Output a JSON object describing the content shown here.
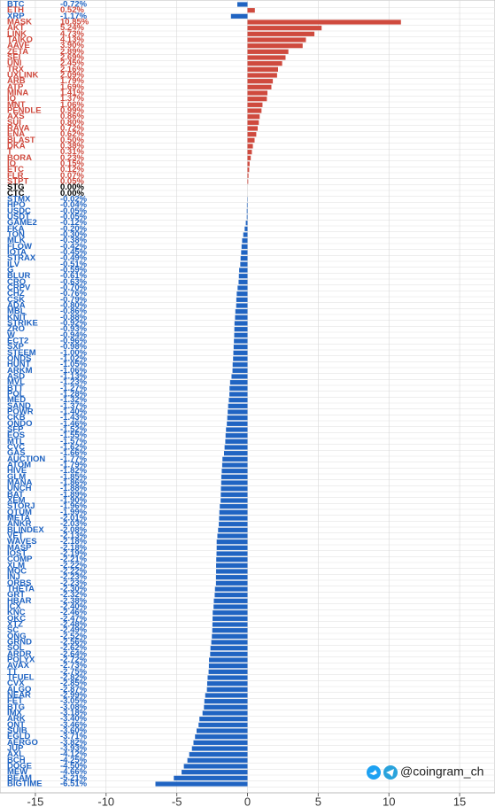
{
  "chart_data": {
    "type": "bar",
    "orientation": "horizontal",
    "categories": [
      "BTC",
      "ETH",
      "XRP",
      "MASK",
      "AKT",
      "LINK",
      "TAIKO",
      "AAVE",
      "ZETA",
      "SEI",
      "UNI",
      "TRX",
      "UXLINK",
      "ARB",
      "ATP",
      "MINA",
      "IQ",
      "MNT",
      "PENDLE",
      "AXS",
      "SUI",
      "RAVA",
      "ENA",
      "BLAST",
      "DKA",
      "T",
      "BORA",
      "IO",
      "ETC",
      "FLR",
      "STPT",
      "STG",
      "CTC",
      "STMX",
      "HPO",
      "USDC",
      "USDT",
      "GAME2",
      "FKA",
      "TON",
      "MLK",
      "FLOW",
      "IOTA",
      "STRAX",
      "ILV",
      "G",
      "BLUR",
      "CRO",
      "CRPV",
      "CHZ",
      "CSK",
      "ADA",
      "MBL",
      "KNIT",
      "STRIKE",
      "ZRO",
      "W",
      "ECT2",
      "SXP",
      "STEEM",
      "ONDS",
      "HUNT",
      "ARKM",
      "ASD",
      "MVL",
      "BTT",
      "POL",
      "MED",
      "SAND",
      "POWR",
      "CKB",
      "ONDO",
      "SFP",
      "EOS",
      "MTL",
      "CVC",
      "GAS",
      "AUCTION",
      "ATOM",
      "HIVE",
      "GLM",
      "MANA",
      "UNCH",
      "BAT",
      "XEM",
      "STORJ",
      "QTUM",
      "META",
      "ANKR",
      "BLINDEX",
      "VET",
      "WAVES",
      "MASP",
      "IOST",
      "COMP",
      "XLM",
      "MOC",
      "INJ",
      "ORBS",
      "THETA",
      "GRT",
      "HBAR",
      "ICX",
      "KNC",
      "OKC",
      "XTZ",
      "SC",
      "ONG",
      "GRND",
      "SOL",
      "ARDR",
      "POLYX",
      "AVAX",
      "TT",
      "TFUEL",
      "CVX",
      "ALGO",
      "NEAR",
      "FET",
      "BTG",
      "IMX",
      "ARK",
      "QNT",
      "SUIB",
      "EGLD",
      "AERGO",
      "JUP",
      "AXL",
      "BCH",
      "DOGE",
      "MEW",
      "BEAM",
      "BIGTIME"
    ],
    "values": [
      -0.72,
      0.52,
      -1.17,
      10.85,
      5.24,
      4.73,
      4.13,
      3.9,
      2.89,
      2.69,
      2.45,
      2.16,
      2.09,
      1.79,
      1.69,
      1.41,
      1.37,
      1.06,
      0.99,
      0.86,
      0.8,
      0.72,
      0.62,
      0.5,
      0.38,
      0.31,
      0.23,
      0.15,
      0.12,
      0.07,
      0.05,
      0.0,
      0.0,
      -0.02,
      -0.04,
      -0.05,
      -0.05,
      -0.12,
      -0.2,
      -0.3,
      -0.38,
      -0.42,
      -0.45,
      -0.49,
      -0.51,
      -0.59,
      -0.61,
      -0.63,
      -0.7,
      -0.76,
      -0.79,
      -0.8,
      -0.86,
      -0.88,
      -0.92,
      -0.93,
      -0.94,
      -0.96,
      -0.98,
      -1.0,
      -1.02,
      -1.05,
      -1.06,
      -1.13,
      -1.23,
      -1.27,
      -1.28,
      -1.32,
      -1.37,
      -1.4,
      -1.43,
      -1.46,
      -1.52,
      -1.55,
      -1.57,
      -1.62,
      -1.66,
      -1.77,
      -1.79,
      -1.82,
      -1.85,
      -1.86,
      -1.88,
      -1.89,
      -1.9,
      -1.96,
      -1.99,
      -2.01,
      -2.03,
      -2.08,
      -2.13,
      -2.18,
      -2.18,
      -2.19,
      -2.21,
      -2.22,
      -2.22,
      -2.23,
      -2.23,
      -2.3,
      -2.32,
      -2.38,
      -2.4,
      -2.46,
      -2.47,
      -2.48,
      -2.49,
      -2.52,
      -2.56,
      -2.62,
      -2.64,
      -2.72,
      -2.73,
      -2.75,
      -2.82,
      -2.85,
      -2.87,
      -2.99,
      -3.05,
      -3.08,
      -3.18,
      -3.4,
      -3.46,
      -3.6,
      -3.71,
      -3.82,
      -3.93,
      -4.12,
      -4.25,
      -4.5,
      -4.66,
      -5.21,
      -6.51
    ],
    "value_labels": [
      "-0.72%",
      "0.52%",
      "-1.17%",
      "10.85%",
      "5.24%",
      "4.73%",
      "4.13%",
      "3.90%",
      "2.89%",
      "2.69%",
      "2.45%",
      "2.16%",
      "2.09%",
      "1.79%",
      "1.69%",
      "1.41%",
      "1.37%",
      "1.06%",
      "0.99%",
      "0.86%",
      "0.80%",
      "0.72%",
      "0.62%",
      "0.50%",
      "0.38%",
      "0.31%",
      "0.23%",
      "0.15%",
      "0.12%",
      "0.07%",
      "0.05%",
      "0.00%",
      "0.00%",
      "-0.02%",
      "-0.04%",
      "-0.05%",
      "-0.05%",
      "-0.12%",
      "-0.20%",
      "-0.30%",
      "-0.38%",
      "-0.42%",
      "-0.45%",
      "-0.49%",
      "-0.51%",
      "-0.59%",
      "-0.61%",
      "-0.63%",
      "-0.70%",
      "-0.76%",
      "-0.79%",
      "-0.80%",
      "-0.86%",
      "-0.88%",
      "-0.92%",
      "-0.93%",
      "-0.94%",
      "-0.96%",
      "-0.98%",
      "-1.00%",
      "-1.02%",
      "-1.05%",
      "-1.06%",
      "-1.13%",
      "-1.23%",
      "-1.27%",
      "-1.28%",
      "-1.32%",
      "-1.37%",
      "-1.40%",
      "-1.43%",
      "-1.46%",
      "-1.52%",
      "-1.55%",
      "-1.57%",
      "-1.62%",
      "-1.66%",
      "-1.77%",
      "-1.79%",
      "-1.82%",
      "-1.85%",
      "-1.86%",
      "-1.88%",
      "-1.89%",
      "-1.90%",
      "-1.96%",
      "-1.99%",
      "-2.01%",
      "-2.03%",
      "-2.08%",
      "-2.13%",
      "-2.18%",
      "-2.18%",
      "-2.19%",
      "-2.21%",
      "-2.22%",
      "-2.22%",
      "-2.23%",
      "-2.23%",
      "-2.30%",
      "-2.32%",
      "-2.38%",
      "-2.40%",
      "-2.46%",
      "-2.47%",
      "-2.48%",
      "-2.49%",
      "-2.52%",
      "-2.56%",
      "-2.62%",
      "-2.64%",
      "-2.72%",
      "-2.73%",
      "-2.75%",
      "-2.82%",
      "-2.85%",
      "-2.87%",
      "-2.99%",
      "-3.05%",
      "-3.08%",
      "-3.18%",
      "-3.40%",
      "-3.46%",
      "-3.60%",
      "-3.71%",
      "-3.82%",
      "-3.93%",
      "-4.12%",
      "-4.25%",
      "-4.50%",
      "-4.66%",
      "-5.21%",
      "-6.51%"
    ],
    "positive_color": "#cf4a3e",
    "negative_color": "#2064c2",
    "zero_color": "#000000",
    "xlim": [
      -17.5,
      17.5
    ],
    "xticks": [
      -15,
      -10,
      -5,
      0,
      5,
      10,
      15
    ],
    "grid": true
  },
  "watermark": "@coingram_ch"
}
